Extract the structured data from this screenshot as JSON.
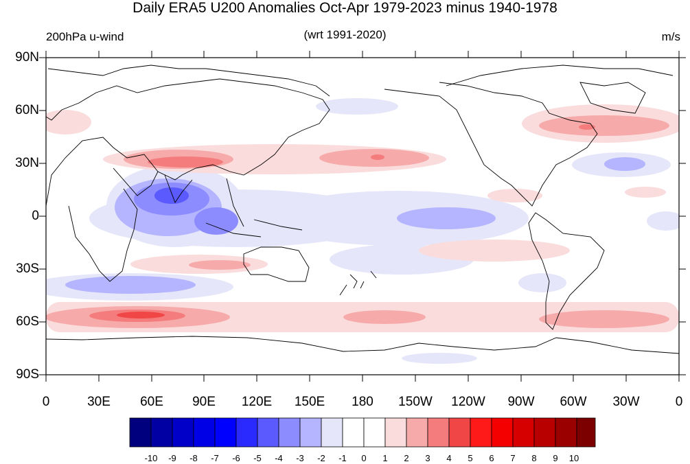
{
  "title": "Daily ERA5 U200 Anomalies Oct-Apr 1979-2023 minus 1940-1978",
  "left_subtitle": "200hPa u-wind",
  "center_subtitle": "(wrt 1991-2020)",
  "right_subtitle": "m/s",
  "lat_ticks": [
    "90N",
    "60N",
    "30N",
    "0",
    "30S",
    "60S",
    "90S"
  ],
  "lon_ticks": [
    "0",
    "30E",
    "60E",
    "90E",
    "120E",
    "150E",
    "180",
    "150W",
    "120W",
    "90W",
    "60W",
    "30W",
    "0"
  ],
  "colorbar": {
    "labels": [
      "-10",
      "-9",
      "-8",
      "-7",
      "-6",
      "-5",
      "-4",
      "-3",
      "-2",
      "-1",
      "0",
      "1",
      "2",
      "3",
      "4",
      "5",
      "6",
      "7",
      "8",
      "9",
      "10"
    ],
    "colors": [
      "#00007f",
      "#0000a3",
      "#0000c8",
      "#0000e6",
      "#0000ff",
      "#2a2aff",
      "#5a5aff",
      "#8c8cff",
      "#b4b4ff",
      "#e6e6fa",
      "#ffffff",
      "#ffffff",
      "#fadcdc",
      "#f7aaaa",
      "#f57c7c",
      "#f04646",
      "#ff1a1a",
      "#f50000",
      "#d70000",
      "#b90000",
      "#9b0000",
      "#7d0000"
    ]
  }
}
